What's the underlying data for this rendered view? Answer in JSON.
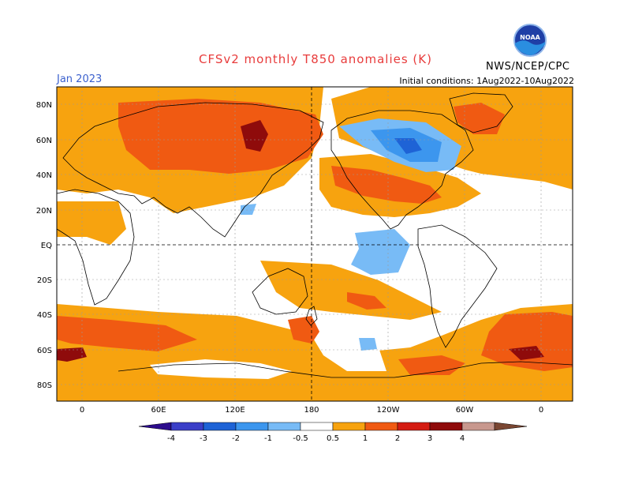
{
  "title": "CFSv2 monthly T850 anomalies (K)",
  "valid_month": "Jan 2023",
  "initial_conditions": "Initial conditions: 1Aug2022-10Aug2022",
  "agency": "NWS/NCEP/CPC",
  "logo_text": "NOAA",
  "lat_labels": [
    "80N",
    "60N",
    "40N",
    "20N",
    "EQ",
    "20S",
    "40S",
    "60S",
    "80S"
  ],
  "lon_labels": [
    "0",
    "60E",
    "120E",
    "180",
    "120W",
    "60W",
    "0"
  ],
  "colorbar": {
    "labels": [
      "-4",
      "-3",
      "-2",
      "-1",
      "-0.5",
      "0.5",
      "1",
      "2",
      "3",
      "4"
    ],
    "colors": [
      "#2c0c8c",
      "#3b3fc8",
      "#1e63d6",
      "#3c96ee",
      "#78bbf6",
      "#ffffff",
      "#f7a30f",
      "#f05a12",
      "#d41c12",
      "#8f0b0b",
      "#c8988e",
      "#7a4632"
    ]
  },
  "colors": {
    "title": "#e83c3c",
    "month": "#3a5fcd",
    "neutral": "#ffffff",
    "warm1": "#f7a30f",
    "warm2": "#f05a12",
    "warm3": "#d41c12",
    "warm4": "#8f0b0b",
    "cool1": "#78bbf6",
    "cool2": "#3c96ee",
    "cool3": "#1e63d6"
  }
}
